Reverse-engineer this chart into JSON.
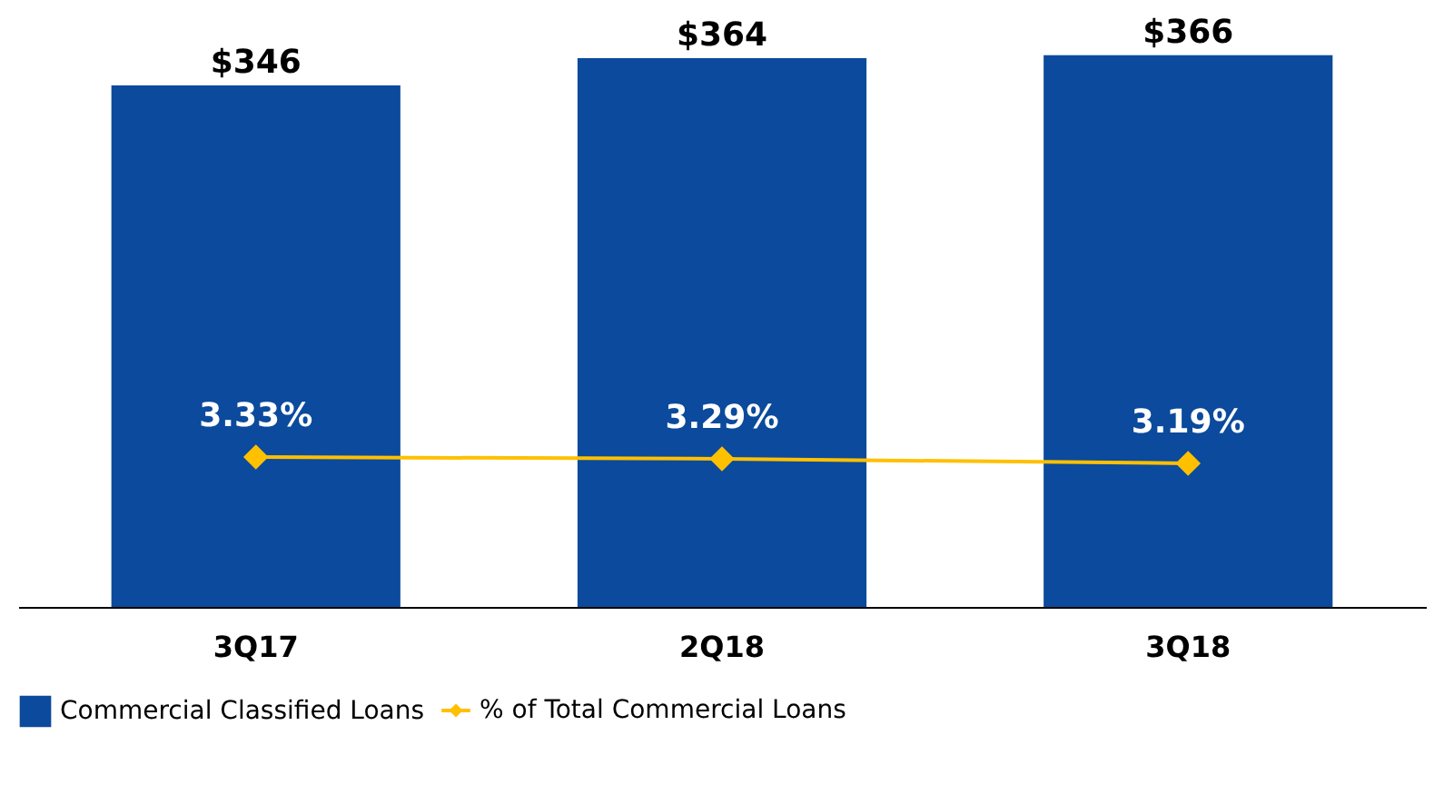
{
  "chart_data": {
    "type": "bar",
    "categories": [
      "3Q17",
      "2Q18",
      "3Q18"
    ],
    "series": [
      {
        "name": "Commercial Classified Loans",
        "color": "#0b4a9c",
        "values": [
          346,
          364,
          366
        ],
        "value_labels": [
          "$346",
          "$364",
          "$366"
        ]
      },
      {
        "name": "% of Total Commercial Loans",
        "type": "line",
        "axis": "y2",
        "color": "#ffc000",
        "values": [
          3.33,
          3.29,
          3.19
        ],
        "value_labels": [
          "3.33%",
          "3.29%",
          "3.19%"
        ]
      }
    ],
    "tick_labels": "x",
    "grid": false,
    "legend": "bottom",
    "marker": "diamond"
  }
}
